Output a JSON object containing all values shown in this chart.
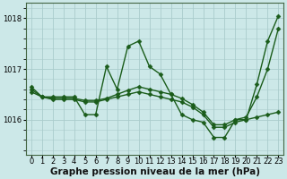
{
  "background_color": "#cce8e8",
  "grid_color": "#aacccc",
  "line_color": "#1a5c1a",
  "marker_style": "D",
  "marker_size": 2.5,
  "line_width": 1.0,
  "xlabel": "Graphe pression niveau de la mer (hPa)",
  "xlabel_fontsize": 7.5,
  "tick_fontsize": 6,
  "ylim": [
    1015.3,
    1018.3
  ],
  "yticks": [
    1016,
    1017,
    1018
  ],
  "xlim": [
    -0.5,
    23.5
  ],
  "xticks": [
    0,
    1,
    2,
    3,
    4,
    5,
    6,
    7,
    8,
    9,
    10,
    11,
    12,
    13,
    14,
    15,
    16,
    17,
    18,
    19,
    20,
    21,
    22,
    23
  ],
  "series": [
    [
      1016.65,
      1016.45,
      1016.45,
      1016.45,
      1016.45,
      1016.1,
      1016.1,
      1017.05,
      1016.6,
      1017.45,
      1017.55,
      1017.05,
      1016.9,
      1016.5,
      1016.1,
      1016.0,
      1015.95,
      1015.65,
      1015.65,
      1016.0,
      1016.0,
      1016.7,
      1017.55,
      1018.05
    ],
    [
      1016.55,
      1016.45,
      1016.4,
      1016.4,
      1016.4,
      1016.35,
      1016.35,
      1016.4,
      1016.45,
      1016.5,
      1016.55,
      1016.5,
      1016.45,
      1016.4,
      1016.35,
      1016.25,
      1016.1,
      1015.85,
      1015.85,
      1015.95,
      1016.0,
      1016.05,
      1016.1,
      1016.15
    ],
    [
      1016.6,
      1016.45,
      1016.42,
      1016.42,
      1016.42,
      1016.38,
      1016.38,
      1016.42,
      1016.5,
      1016.58,
      1016.65,
      1016.6,
      1016.55,
      1016.5,
      1016.42,
      1016.3,
      1016.15,
      1015.9,
      1015.9,
      1016.0,
      1016.05,
      1016.45,
      1017.0,
      1017.8
    ]
  ]
}
